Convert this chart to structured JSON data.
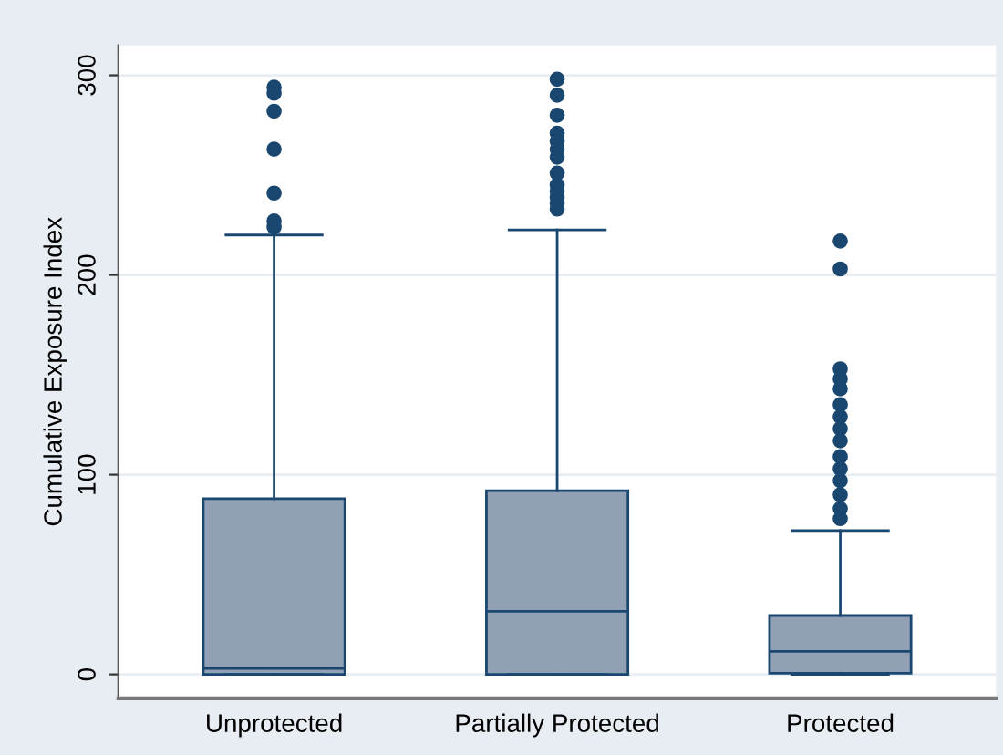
{
  "chart_data": {
    "type": "box",
    "ylabel": "Cumulative Exposure Index",
    "categories": [
      "Unprotected",
      "Partially Protected",
      "Protected"
    ],
    "boxes": [
      {
        "low": 0,
        "q1": 0,
        "median": 3,
        "q3": 88,
        "high": 220,
        "outliers": [
          294,
          291,
          282,
          263,
          241,
          227,
          224
        ]
      },
      {
        "low": 0,
        "q1": 0,
        "median": 31.6,
        "q3": 92,
        "high": 222.6,
        "outliers": [
          298,
          290,
          280,
          271,
          267,
          263,
          259,
          251,
          245,
          242,
          239,
          236,
          233
        ]
      },
      {
        "low": 0,
        "q1": 0.6,
        "median": 11.5,
        "q3": 29.5,
        "high": 72,
        "outliers": [
          217,
          203,
          153,
          148,
          143,
          135,
          129,
          123,
          117,
          109,
          103,
          97,
          90,
          83,
          78
        ]
      }
    ],
    "color": "#91a0b5",
    "ylim": [
      -12,
      315
    ],
    "yticks": [
      0,
      100,
      200,
      300
    ],
    "grid": "y"
  }
}
